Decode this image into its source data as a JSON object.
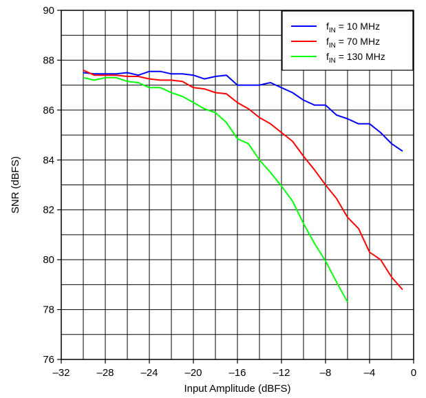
{
  "chart_data": {
    "type": "line",
    "xlabel": "Input Amplitude (dBFS)",
    "ylabel": "SNR (dBFS)",
    "xlim": [
      -32,
      0
    ],
    "ylim": [
      76,
      90
    ],
    "x_ticks": [
      -32,
      -28,
      -24,
      -20,
      -16,
      -12,
      -8,
      -4,
      0
    ],
    "x_tick_labels": [
      "–32",
      "–28",
      "–24",
      "–20",
      "–16",
      "–12",
      "–8",
      "–4",
      "0"
    ],
    "y_ticks": [
      76,
      78,
      80,
      82,
      84,
      86,
      88,
      90
    ],
    "y_tick_labels": [
      "76",
      "78",
      "80",
      "82",
      "84",
      "86",
      "88",
      "90"
    ],
    "grid": true,
    "grid_x_step": 2,
    "grid_y_step": 1,
    "legend_position": "top-right",
    "series": [
      {
        "name": "f_IN = 10 MHz",
        "legend": {
          "prefix": "f",
          "sub": "IN",
          "suffix": " = 10 MHz"
        },
        "color": "#0000ff",
        "x": [
          -30,
          -29,
          -28,
          -27,
          -26,
          -25,
          -24,
          -23,
          -22,
          -21,
          -20,
          -19,
          -18,
          -17,
          -16,
          -15,
          -14,
          -13,
          -12,
          -11,
          -10,
          -9,
          -8,
          -7,
          -6,
          -5,
          -4,
          -3,
          -2,
          -1
        ],
        "y": [
          87.5,
          87.45,
          87.45,
          87.45,
          87.5,
          87.4,
          87.55,
          87.55,
          87.45,
          87.45,
          87.4,
          87.25,
          87.35,
          87.4,
          87.0,
          87.0,
          87.0,
          87.1,
          86.9,
          86.7,
          86.4,
          86.2,
          86.2,
          85.8,
          85.65,
          85.45,
          85.45,
          85.1,
          84.65,
          84.35
        ]
      },
      {
        "name": "f_IN = 70 MHz",
        "legend": {
          "prefix": "f",
          "sub": "IN",
          "suffix": " = 70 MHz"
        },
        "color": "#ff0000",
        "x": [
          -30,
          -29,
          -28,
          -27,
          -26,
          -25,
          -24,
          -23,
          -22,
          -21,
          -20,
          -19,
          -18,
          -17,
          -16,
          -15,
          -14,
          -13,
          -12,
          -11,
          -10,
          -9,
          -8,
          -7,
          -6,
          -5,
          -4,
          -3,
          -2,
          -1
        ],
        "y": [
          87.6,
          87.4,
          87.4,
          87.4,
          87.35,
          87.35,
          87.25,
          87.2,
          87.2,
          87.15,
          86.9,
          86.85,
          86.7,
          86.65,
          86.3,
          86.05,
          85.7,
          85.45,
          85.1,
          84.75,
          84.15,
          83.6,
          83.0,
          82.45,
          81.7,
          81.25,
          80.3,
          80.0,
          79.3,
          78.8
        ]
      },
      {
        "name": "f_IN = 130 MHz",
        "legend": {
          "prefix": "f",
          "sub": "IN",
          "suffix": " = 130 MHz"
        },
        "color": "#00ff00",
        "x": [
          -30,
          -29,
          -28,
          -27,
          -26,
          -25,
          -24,
          -23,
          -22,
          -21,
          -20,
          -19,
          -18,
          -17,
          -16,
          -15,
          -14,
          -13,
          -12,
          -11,
          -10,
          -9,
          -8,
          -7,
          -6
        ],
        "y": [
          87.3,
          87.2,
          87.3,
          87.3,
          87.15,
          87.1,
          86.9,
          86.9,
          86.7,
          86.55,
          86.3,
          86.05,
          85.9,
          85.5,
          84.85,
          84.65,
          84.0,
          83.5,
          82.95,
          82.35,
          81.45,
          80.65,
          79.95,
          79.1,
          78.3
        ]
      }
    ]
  }
}
